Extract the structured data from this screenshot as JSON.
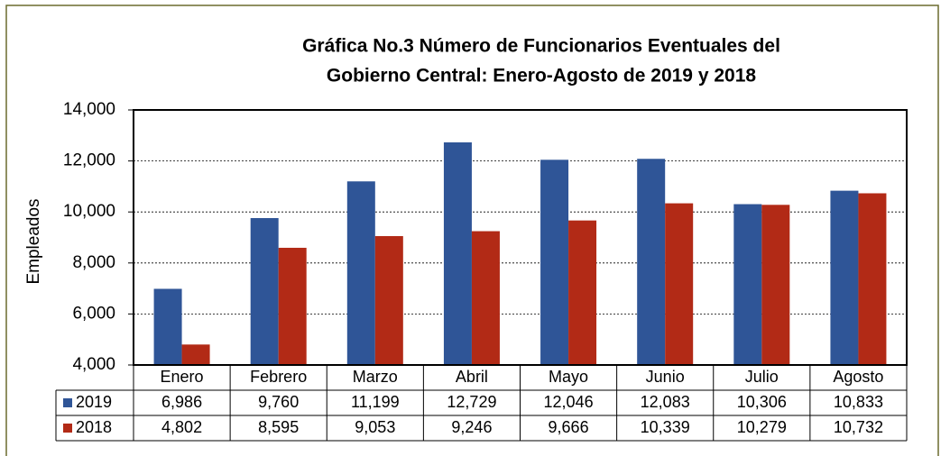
{
  "chart_data": {
    "type": "bar",
    "title": [
      "Gráfica No.3 Número de Funcionarios Eventuales del",
      "Gobierno Central: Enero-Agosto de 2019 y 2018"
    ],
    "y_label": "Empleados",
    "categories": [
      "Enero",
      "Febrero",
      "Marzo",
      "Abril",
      "Mayo",
      "Junio",
      "Julio",
      "Agosto"
    ],
    "series": [
      {
        "name": "2019",
        "color": "#2f5597",
        "values": [
          6986,
          9760,
          11199,
          12729,
          12046,
          12083,
          10306,
          10833
        ],
        "value_labels": [
          "6,986",
          "9,760",
          "11,199",
          "12,729",
          "12,046",
          "12,083",
          "10,306",
          "10,833"
        ]
      },
      {
        "name": "2018",
        "color": "#b22a16",
        "values": [
          4802,
          8595,
          9053,
          9246,
          9666,
          10339,
          10279,
          10732
        ],
        "value_labels": [
          "4,802",
          "8,595",
          "9,053",
          "9,246",
          "9,666",
          "10,339",
          "10,279",
          "10,732"
        ]
      }
    ],
    "ylim": [
      4000,
      14000
    ],
    "yticks": [
      {
        "value": 4000,
        "label": "4,000"
      },
      {
        "value": 6000,
        "label": "6,000"
      },
      {
        "value": 8000,
        "label": "8,000"
      },
      {
        "value": 10000,
        "label": "10,000"
      },
      {
        "value": 12000,
        "label": "12,000"
      },
      {
        "value": 14000,
        "label": "14,000"
      }
    ],
    "grid": true
  }
}
